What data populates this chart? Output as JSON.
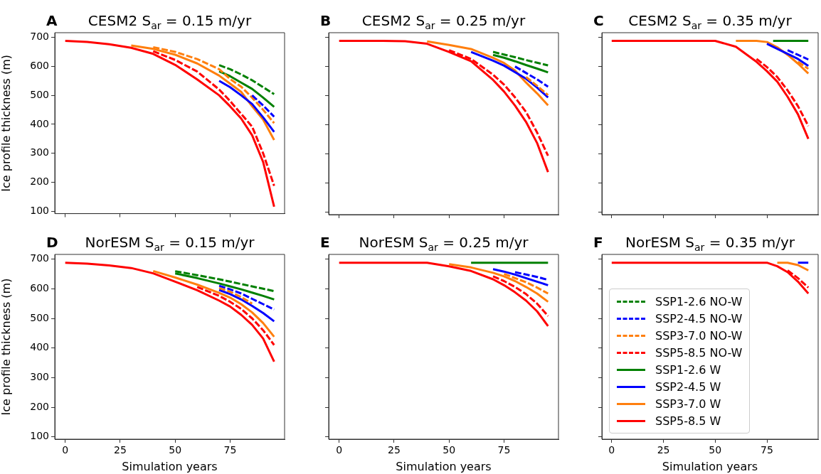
{
  "chart_data": [
    {
      "type": "line",
      "title": "CESM2 S$_{ar}$ = 0.15 m/yr",
      "annotations": [
        "A"
      ],
      "ylabel": "Ice profile thickness (m)",
      "tick_labels": "y",
      "grid": false,
      "legend": false,
      "xlim": [
        -4.75,
        99.75
      ],
      "ylim": [
        92,
        716
      ],
      "xticks": [
        0,
        25,
        50,
        75
      ],
      "yticks": [
        100,
        200,
        300,
        400,
        500,
        600,
        700
      ],
      "x": [
        0,
        10,
        20,
        30,
        40,
        50,
        60,
        70,
        75,
        80,
        85,
        90,
        95
      ],
      "series": [
        {
          "color": "#008000",
          "line_style": "dashed",
          "x": [
            70,
            75,
            80,
            85,
            90,
            95
          ],
          "values": [
            604,
            590,
            572,
            552,
            528,
            504
          ]
        },
        {
          "color": "#0000ff",
          "line_style": "dashed",
          "x": [
            85,
            90,
            95
          ],
          "values": [
            500,
            465,
            426
          ]
        },
        {
          "color": "#ff7f0e",
          "line_style": "dashed",
          "x": [
            40,
            50,
            60,
            70,
            75,
            80,
            85,
            90,
            95
          ],
          "values": [
            666,
            650,
            625,
            590,
            556,
            530,
            492,
            450,
            404
          ]
        },
        {
          "color": "#ff0000",
          "line_style": "dashed",
          "x": [
            40,
            50,
            60,
            70,
            75,
            80,
            85,
            90,
            95
          ],
          "values": [
            652,
            622,
            582,
            520,
            480,
            436,
            392,
            300,
            188
          ]
        },
        {
          "color": "#008000",
          "line_style": "solid",
          "x": [
            70,
            75,
            80,
            85,
            90,
            95
          ],
          "values": [
            583,
            566,
            544,
            522,
            492,
            460
          ]
        },
        {
          "color": "#0000ff",
          "line_style": "solid",
          "x": [
            70,
            75,
            80,
            85,
            90,
            95
          ],
          "values": [
            550,
            528,
            500,
            470,
            424,
            374
          ]
        },
        {
          "color": "#ff7f0e",
          "line_style": "solid",
          "x": [
            30,
            40,
            50,
            60,
            70,
            75,
            80,
            85,
            90,
            95
          ],
          "values": [
            672,
            660,
            640,
            610,
            568,
            540,
            512,
            462,
            416,
            346
          ]
        },
        {
          "color": "#ff0000",
          "line_style": "solid",
          "values": [
            688,
            684,
            676,
            664,
            643,
            605,
            555,
            500,
            462,
            420,
            362,
            270,
            116
          ]
        }
      ]
    },
    {
      "type": "line",
      "title": "CESM2 S$_{ar}$ = 0.25 m/yr",
      "annotations": [
        "B"
      ],
      "tick_labels": false,
      "grid": false,
      "legend": false,
      "xlim": [
        -4.75,
        99.75
      ],
      "ylim": [
        92,
        716
      ],
      "xticks": [
        0,
        25,
        50,
        75
      ],
      "yticks": [
        100,
        200,
        300,
        400,
        500,
        600,
        700
      ],
      "x": [
        0,
        10,
        20,
        30,
        40,
        50,
        60,
        70,
        75,
        80,
        85,
        90,
        95
      ],
      "series": [
        {
          "color": "#008000",
          "line_style": "dashed",
          "x": [
            70,
            75,
            80,
            85,
            90,
            95
          ],
          "values": [
            650,
            641,
            632,
            622,
            613,
            604
          ]
        },
        {
          "color": "#0000ff",
          "line_style": "dashed",
          "x": [
            80,
            85,
            90,
            95
          ],
          "values": [
            600,
            578,
            556,
            531
          ]
        },
        {
          "color": "#ff7f0e",
          "line_style": "dashed",
          "x": [
            85,
            90,
            95
          ],
          "values": [
            564,
            534,
            502
          ]
        },
        {
          "color": "#ff0000",
          "line_style": "dashed",
          "x": [
            50,
            60,
            70,
            75,
            80,
            85,
            90,
            95
          ],
          "values": [
            656,
            626,
            572,
            538,
            494,
            444,
            374,
            294
          ]
        },
        {
          "color": "#008000",
          "line_style": "solid",
          "x": [
            70,
            75,
            80,
            85,
            90,
            95
          ],
          "values": [
            640,
            630,
            618,
            605,
            593,
            580
          ]
        },
        {
          "color": "#0000ff",
          "line_style": "solid",
          "x": [
            60,
            70,
            75,
            85,
            90,
            95
          ],
          "values": [
            650,
            620,
            603,
            558,
            528,
            494
          ]
        },
        {
          "color": "#ff7f0e",
          "line_style": "solid",
          "x": [
            40,
            50,
            60,
            70,
            75,
            80,
            85,
            90,
            95
          ],
          "values": [
            686,
            674,
            660,
            630,
            612,
            586,
            545,
            508,
            467
          ]
        },
        {
          "color": "#ff0000",
          "line_style": "solid",
          "values": [
            688,
            688,
            688,
            687,
            678,
            650,
            618,
            554,
            514,
            466,
            410,
            338,
            238
          ]
        }
      ]
    },
    {
      "type": "line",
      "title": "CESM2 S$_{ar}$ = 0.35 m/yr",
      "annotations": [
        "C"
      ],
      "tick_labels": false,
      "grid": false,
      "legend": false,
      "xlim": [
        -4.75,
        99.75
      ],
      "ylim": [
        92,
        716
      ],
      "xticks": [
        0,
        25,
        50,
        75
      ],
      "yticks": [
        100,
        200,
        300,
        400,
        500,
        600,
        700
      ],
      "x": [
        0,
        10,
        20,
        30,
        40,
        50,
        60,
        70,
        75,
        80,
        85,
        90,
        95
      ],
      "series": [
        {
          "color": "#008000",
          "line_style": "dashed",
          "values": [
            null,
            null,
            null,
            null,
            null,
            null,
            null,
            null,
            null,
            null,
            null,
            null,
            null
          ]
        },
        {
          "color": "#0000ff",
          "line_style": "dashed",
          "x": [
            85,
            90,
            95
          ],
          "values": [
            656,
            640,
            624
          ]
        },
        {
          "color": "#ff7f0e",
          "line_style": "dashed",
          "x": [
            90,
            95
          ],
          "values": [
            616,
            592
          ]
        },
        {
          "color": "#ff0000",
          "line_style": "dashed",
          "x": [
            70,
            75,
            80,
            85,
            90,
            95
          ],
          "values": [
            626,
            598,
            564,
            518,
            464,
            396
          ]
        },
        {
          "color": "#008000",
          "line_style": "solid",
          "x": [
            78,
            80,
            85,
            90,
            95
          ],
          "values": [
            688,
            688,
            688,
            688,
            688
          ]
        },
        {
          "color": "#0000ff",
          "line_style": "solid",
          "x": [
            75,
            90,
            95
          ],
          "values": [
            678,
            626,
            602
          ]
        },
        {
          "color": "#ff7f0e",
          "line_style": "solid",
          "x": [
            60,
            70,
            75,
            80,
            85,
            90,
            95
          ],
          "values": [
            688,
            688,
            684,
            666,
            640,
            610,
            576
          ]
        },
        {
          "color": "#ff0000",
          "line_style": "solid",
          "values": [
            688,
            688,
            688,
            688,
            688,
            688,
            668,
            616,
            584,
            548,
            496,
            436,
            352
          ]
        }
      ]
    },
    {
      "type": "line",
      "title": "NorESM S$_{ar}$ = 0.15 m/yr",
      "annotations": [
        "D"
      ],
      "xlabel": "Simulation years",
      "ylabel": "Ice profile thickness (m)",
      "grid": false,
      "legend": false,
      "xlim": [
        -4.75,
        99.75
      ],
      "ylim": [
        92,
        716
      ],
      "xticks": [
        0,
        25,
        50,
        75
      ],
      "yticks": [
        100,
        200,
        300,
        400,
        500,
        600,
        700
      ],
      "x": [
        0,
        10,
        20,
        30,
        40,
        50,
        60,
        70,
        75,
        80,
        85,
        90,
        95
      ],
      "series": [
        {
          "color": "#008000",
          "line_style": "dashed",
          "x": [
            50,
            60,
            70,
            75,
            80,
            85,
            90,
            95
          ],
          "values": [
            659,
            646,
            632,
            624,
            616,
            608,
            600,
            592
          ]
        },
        {
          "color": "#0000ff",
          "line_style": "dashed",
          "x": [
            70,
            75,
            80,
            85,
            90,
            95
          ],
          "values": [
            610,
            598,
            584,
            566,
            548,
            530
          ]
        },
        {
          "color": "#ff7f0e",
          "line_style": "dashed",
          "x": [
            70,
            75,
            80,
            85
          ],
          "values": [
            603,
            590,
            572,
            550
          ]
        },
        {
          "color": "#ff0000",
          "line_style": "dashed",
          "x": [
            60,
            70,
            75,
            80,
            85,
            90,
            95
          ],
          "values": [
            606,
            576,
            556,
            532,
            500,
            460,
            410
          ]
        },
        {
          "color": "#008000",
          "line_style": "solid",
          "x": [
            50,
            60,
            70,
            75,
            80,
            85,
            90,
            95
          ],
          "values": [
            652,
            636,
            618,
            608,
            598,
            587,
            576,
            564
          ]
        },
        {
          "color": "#0000ff",
          "line_style": "solid",
          "x": [
            70,
            75,
            80,
            85,
            90,
            95
          ],
          "values": [
            596,
            582,
            564,
            542,
            518,
            490
          ]
        },
        {
          "color": "#ff7f0e",
          "line_style": "solid",
          "x": [
            40,
            50,
            60,
            70,
            75,
            80,
            85,
            90,
            95
          ],
          "values": [
            660,
            638,
            614,
            586,
            570,
            548,
            520,
            484,
            438
          ]
        },
        {
          "color": "#ff0000",
          "line_style": "solid",
          "values": [
            688,
            685,
            679,
            670,
            652,
            624,
            595,
            560,
            540,
            512,
            478,
            432,
            354
          ]
        }
      ]
    },
    {
      "type": "line",
      "title": "NorESM S$_{ar}$ = 0.25 m/yr",
      "annotations": [
        "E"
      ],
      "xlabel": "Simulation years",
      "tick_labels": "x",
      "grid": false,
      "legend": false,
      "xlim": [
        -4.75,
        99.75
      ],
      "ylim": [
        92,
        716
      ],
      "xticks": [
        0,
        25,
        50,
        75
      ],
      "yticks": [
        100,
        200,
        300,
        400,
        500,
        600,
        700
      ],
      "x": [
        0,
        10,
        20,
        30,
        40,
        50,
        60,
        70,
        75,
        80,
        85,
        90,
        95
      ],
      "series": [
        {
          "color": "#008000",
          "line_style": "dashed",
          "values": [
            null,
            null,
            null,
            null,
            null,
            null,
            null,
            null,
            null,
            null,
            null,
            null,
            null
          ]
        },
        {
          "color": "#0000ff",
          "line_style": "dashed",
          "x": [
            80,
            85,
            90,
            95
          ],
          "values": [
            656,
            648,
            640,
            630
          ]
        },
        {
          "color": "#ff7f0e",
          "line_style": "dashed",
          "x": [
            75,
            80,
            85,
            90,
            95
          ],
          "values": [
            650,
            636,
            622,
            604,
            584
          ]
        },
        {
          "color": "#ff0000",
          "line_style": "dashed",
          "x": [
            70,
            75,
            80,
            85,
            90,
            95
          ],
          "values": [
            642,
            626,
            606,
            582,
            550,
            508
          ]
        },
        {
          "color": "#008000",
          "line_style": "solid",
          "x": [
            60,
            70,
            75,
            80,
            85,
            90,
            95
          ],
          "values": [
            688,
            688,
            688,
            688,
            688,
            688,
            688
          ]
        },
        {
          "color": "#0000ff",
          "line_style": "solid",
          "x": [
            70,
            75,
            80,
            85,
            90,
            95
          ],
          "values": [
            666,
            658,
            648,
            636,
            624,
            612
          ]
        },
        {
          "color": "#ff7f0e",
          "line_style": "solid",
          "x": [
            50,
            60,
            70,
            75,
            80,
            85,
            90,
            95
          ],
          "values": [
            683,
            672,
            654,
            642,
            626,
            606,
            584,
            556
          ]
        },
        {
          "color": "#ff0000",
          "line_style": "solid",
          "values": [
            688,
            688,
            688,
            688,
            688,
            676,
            660,
            632,
            612,
            588,
            560,
            524,
            474
          ]
        }
      ]
    },
    {
      "type": "line",
      "title": "NorESM S$_{ar}$ = 0.35 m/yr",
      "annotations": [
        "F"
      ],
      "xlabel": "Simulation years",
      "tick_labels": "x",
      "grid": false,
      "legend": "bottom left",
      "xlim": [
        -4.75,
        99.75
      ],
      "ylim": [
        92,
        716
      ],
      "xticks": [
        0,
        25,
        50,
        75
      ],
      "yticks": [
        100,
        200,
        300,
        400,
        500,
        600,
        700
      ],
      "x": [
        0,
        10,
        20,
        30,
        40,
        50,
        60,
        70,
        75,
        80,
        85,
        90,
        95
      ],
      "series": [
        {
          "name": "SSP1-2.6 NO-W",
          "color": "#008000",
          "line_style": "dashed",
          "values": [
            null,
            null,
            null,
            null,
            null,
            null,
            null,
            null,
            null,
            null,
            null,
            null,
            null
          ]
        },
        {
          "name": "SSP2-4.5 NO-W",
          "color": "#0000ff",
          "line_style": "dashed",
          "values": [
            null,
            null,
            null,
            null,
            null,
            null,
            null,
            null,
            null,
            null,
            null,
            null,
            null
          ]
        },
        {
          "name": "SSP3-7.0 NO-W",
          "color": "#ff7f0e",
          "line_style": "dashed",
          "values": [
            null,
            null,
            null,
            null,
            null,
            null,
            null,
            null,
            null,
            null,
            null,
            null,
            null
          ]
        },
        {
          "name": "SSP5-8.5 NO-W",
          "color": "#ff0000",
          "line_style": "dashed",
          "x": [
            85,
            90,
            95
          ],
          "values": [
            662,
            636,
            604
          ]
        },
        {
          "name": "SSP1-2.6 W",
          "color": "#008000",
          "line_style": "solid",
          "values": [
            null,
            null,
            null,
            null,
            null,
            null,
            null,
            null,
            null,
            null,
            null,
            null,
            null
          ]
        },
        {
          "name": "SSP2-4.5 W",
          "color": "#0000ff",
          "line_style": "solid",
          "x": [
            90,
            95
          ],
          "values": [
            688,
            688
          ]
        },
        {
          "name": "SSP3-7.0 W",
          "color": "#ff7f0e",
          "line_style": "solid",
          "x": [
            80,
            85,
            90,
            95
          ],
          "values": [
            688,
            688,
            680,
            662
          ]
        },
        {
          "name": "SSP5-8.5 W",
          "color": "#ff0000",
          "line_style": "solid",
          "values": [
            688,
            688,
            688,
            688,
            688,
            688,
            688,
            688,
            688,
            676,
            656,
            624,
            584
          ]
        }
      ]
    }
  ]
}
